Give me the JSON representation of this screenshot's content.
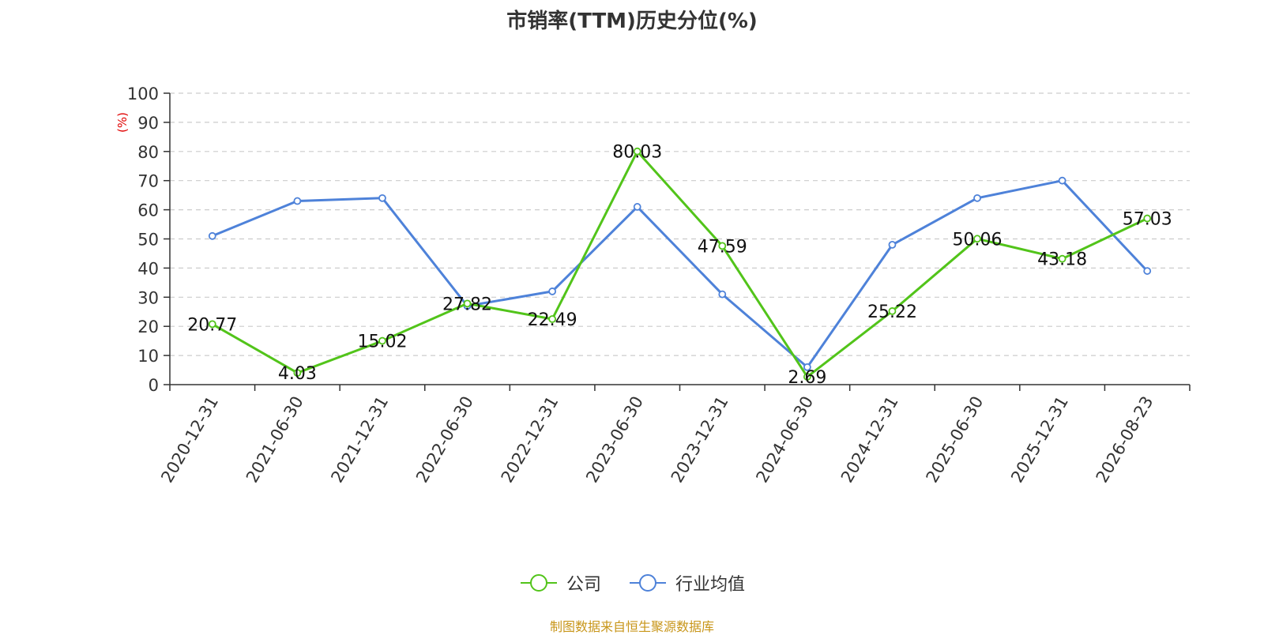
{
  "chart_data": {
    "type": "line",
    "title": "市销率(TTM)历史分位(%)",
    "ylabel": "(%)",
    "xlabel": "",
    "ylim": [
      0,
      100
    ],
    "yticks": [
      0,
      10,
      20,
      30,
      40,
      50,
      60,
      70,
      80,
      90,
      100
    ],
    "grid": true,
    "legend_position": "bottom",
    "categories": [
      "2020-12-31",
      "2021-06-30",
      "2021-12-31",
      "2022-06-30",
      "2022-12-31",
      "2023-06-30",
      "2023-12-31",
      "2024-06-30",
      "2024-12-31",
      "2025-06-30",
      "2025-12-31",
      "2026-08-23"
    ],
    "series": [
      {
        "name": "公司",
        "color": "#52c41a",
        "values": [
          20.77,
          4.03,
          15.02,
          27.82,
          22.49,
          80.03,
          47.59,
          2.69,
          25.22,
          50.06,
          43.18,
          57.03
        ],
        "labels": [
          "20.77",
          "4.03",
          "15.02",
          "27.82",
          "22.49",
          "80.03",
          "47.59",
          "2.69",
          "25.22",
          "50.06",
          "43.18",
          "57.03"
        ],
        "show_labels": true
      },
      {
        "name": "行业均值",
        "color": "#4e82d9",
        "values": [
          51,
          63,
          64,
          27,
          32,
          61,
          31,
          6,
          48,
          64,
          70,
          39
        ],
        "show_labels": false
      }
    ]
  },
  "source_note": "制图数据来自恒生聚源数据库"
}
